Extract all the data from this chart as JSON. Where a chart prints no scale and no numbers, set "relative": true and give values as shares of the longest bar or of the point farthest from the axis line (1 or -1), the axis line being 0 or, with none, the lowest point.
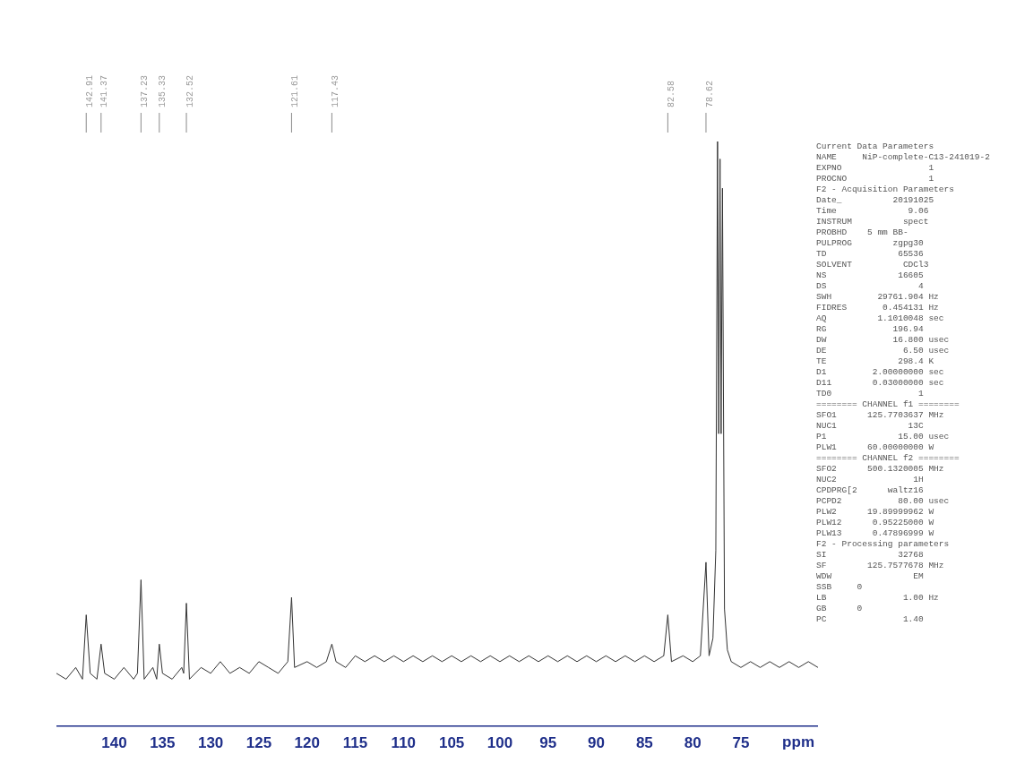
{
  "chart_data": {
    "type": "line",
    "relative": true,
    "xlabel": "ppm",
    "xlim": [
      146,
      67
    ],
    "xticks": [
      140,
      135,
      130,
      125,
      120,
      115,
      110,
      105,
      100,
      95,
      90,
      85,
      80,
      75
    ],
    "grid": false,
    "legend": false,
    "marker": "none",
    "line_style": "solid",
    "series": [
      {
        "color": "#333333",
        "x": [
          146,
          145,
          144,
          143.3,
          142.91,
          142.5,
          141.8,
          141.37,
          141,
          140,
          139,
          138,
          137.6,
          137.23,
          136.9,
          136,
          135.6,
          135.33,
          135,
          134,
          133,
          132.8,
          132.52,
          132.2,
          131,
          130,
          129,
          128,
          127,
          126,
          125,
          124,
          123,
          122,
          121.61,
          121.3,
          120,
          119,
          118,
          117.43,
          117,
          116,
          115,
          114,
          113,
          112,
          111,
          110,
          109,
          108,
          107,
          106,
          105,
          104,
          103,
          102,
          101,
          100,
          99,
          98,
          97,
          96,
          95,
          94,
          93,
          92,
          91,
          90,
          89,
          88,
          87,
          86,
          85,
          84,
          83,
          82.58,
          82.2,
          81,
          80,
          79.2,
          78.62,
          78.3,
          77.9,
          77.6,
          77.42,
          77.3,
          77.16,
          77.05,
          76.91,
          76.7,
          76.4,
          76,
          75,
          74,
          73,
          72,
          71,
          70,
          69,
          68,
          67
        ],
        "values": [
          0.09,
          0.08,
          0.1,
          0.08,
          0.19,
          0.09,
          0.08,
          0.14,
          0.09,
          0.08,
          0.1,
          0.08,
          0.09,
          0.25,
          0.08,
          0.1,
          0.08,
          0.14,
          0.09,
          0.08,
          0.1,
          0.09,
          0.21,
          0.08,
          0.1,
          0.09,
          0.11,
          0.09,
          0.1,
          0.09,
          0.11,
          0.1,
          0.09,
          0.11,
          0.22,
          0.1,
          0.11,
          0.1,
          0.11,
          0.14,
          0.11,
          0.1,
          0.12,
          0.11,
          0.12,
          0.11,
          0.12,
          0.11,
          0.12,
          0.11,
          0.12,
          0.11,
          0.12,
          0.11,
          0.12,
          0.11,
          0.12,
          0.11,
          0.12,
          0.11,
          0.12,
          0.11,
          0.12,
          0.11,
          0.12,
          0.11,
          0.12,
          0.11,
          0.12,
          0.11,
          0.12,
          0.11,
          0.12,
          0.11,
          0.12,
          0.19,
          0.11,
          0.12,
          0.11,
          0.12,
          0.28,
          0.12,
          0.15,
          0.3,
          1.0,
          0.5,
          0.97,
          0.5,
          0.92,
          0.2,
          0.13,
          0.11,
          0.1,
          0.11,
          0.1,
          0.11,
          0.1,
          0.11,
          0.1,
          0.11,
          0.1
        ]
      }
    ],
    "annotations": [
      {
        "text": "142.91",
        "x": 142.91
      },
      {
        "text": "141.37",
        "x": 141.37
      },
      {
        "text": "137.23",
        "x": 137.23
      },
      {
        "text": "135.33",
        "x": 135.33
      },
      {
        "text": "132.52",
        "x": 132.52
      },
      {
        "text": "121.61",
        "x": 121.61
      },
      {
        "text": "117.43",
        "x": 117.43
      },
      {
        "text": "82.58",
        "x": 82.58
      },
      {
        "text": "78.62",
        "x": 78.62
      },
      "Current Data Parameters",
      "NAME     NiP-complete-C13-241019-2",
      "EXPNO                 1",
      "PROCNO                1",
      "F2 - Acquisition Parameters",
      "Date_          20191025",
      "Time              9.06",
      "INSTRUM          spect",
      "PROBHD    5 mm BB-",
      "PULPROG        zgpg30",
      "TD              65536",
      "SOLVENT          CDCl3",
      "NS              16605",
      "DS                  4",
      "SWH         29761.904 Hz",
      "FIDRES       0.454131 Hz",
      "AQ          1.1010048 sec",
      "RG             196.94",
      "DW             16.800 usec",
      "DE               6.50 usec",
      "TE              298.4 K",
      "D1         2.00000000 sec",
      "D11        0.03000000 sec",
      "TD0                 1",
      "======== CHANNEL f1 ========",
      "SFO1      125.7703637 MHz",
      "NUC1              13C",
      "P1              15.00 usec",
      "PLW1      60.00000000 W",
      "======== CHANNEL f2 ========",
      "SFO2      500.1320005 MHz",
      "NUC2               1H",
      "CPDPRG[2      waltz16",
      "PCPD2           80.00 usec",
      "PLW2      19.89999962 W",
      "PLW12      0.95225000 W",
      "PLW13      0.47896999 W",
      "F2 - Processing parameters",
      "SI              32768",
      "SF        125.7577678 MHz",
      "WDW                EM",
      "SSB     0",
      "LB               1.00 Hz",
      "GB      0",
      "PC               1.40"
    ]
  }
}
